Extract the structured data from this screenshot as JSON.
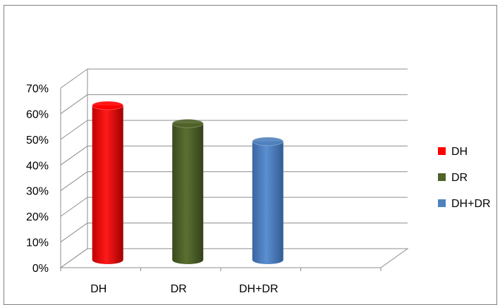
{
  "chart_data": {
    "type": "bar",
    "style": "3d-cylinder",
    "categories": [
      "DH",
      "DR",
      "DH+DR"
    ],
    "values": [
      0.61,
      0.54,
      0.47
    ],
    "ylim": [
      0,
      0.7
    ],
    "yticks": [
      "0%",
      "10%",
      "20%",
      "30%",
      "40%",
      "50%",
      "60%",
      "70%"
    ],
    "grid": true,
    "legend_position": "right",
    "legend": [
      "DH",
      "DR",
      "DH+DR"
    ],
    "colors": [
      "#ff0000",
      "#4f6228",
      "#4f81bd"
    ]
  }
}
